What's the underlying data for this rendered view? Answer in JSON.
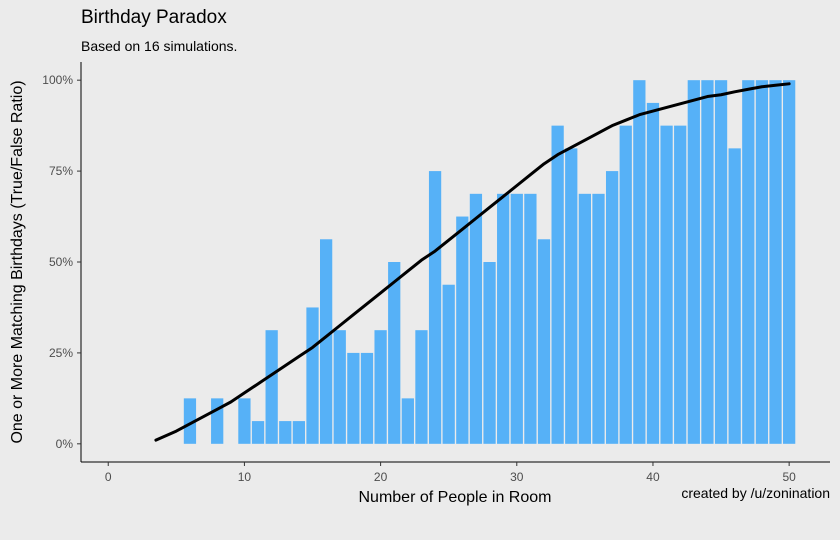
{
  "header": {
    "title": "Birthday Paradox",
    "subtitle": "Based on 16 simulations.",
    "caption": "created by /u/zonination"
  },
  "colors": {
    "background": "#ebebeb",
    "bar": "#56b1f7",
    "curve": "#000000",
    "axis": "#000000"
  },
  "chart_data": {
    "type": "bar",
    "xlabel": "Number of People in Room",
    "ylabel": "One or More Matching Birthdays (True/False Ratio)",
    "xlim": [
      -2,
      53
    ],
    "ylim": [
      -0.05,
      1.05
    ],
    "x_ticks": [
      0,
      10,
      20,
      30,
      40,
      50
    ],
    "y_ticks": [
      0,
      0.25,
      0.5,
      0.75,
      1.0
    ],
    "y_tick_labels": [
      "0%",
      "25%",
      "50%",
      "75%",
      "100%"
    ],
    "grid": false,
    "x": [
      2,
      3,
      4,
      5,
      6,
      7,
      8,
      9,
      10,
      11,
      12,
      13,
      14,
      15,
      16,
      17,
      18,
      19,
      20,
      21,
      22,
      23,
      24,
      25,
      26,
      27,
      28,
      29,
      30,
      31,
      32,
      33,
      34,
      35,
      36,
      37,
      38,
      39,
      40,
      41,
      42,
      43,
      44,
      45,
      46,
      47,
      48,
      49,
      50
    ],
    "values": [
      0,
      0,
      0,
      0,
      0.125,
      0,
      0.125,
      0,
      0.125,
      0.0625,
      0.3125,
      0.0625,
      0.0625,
      0.375,
      0.5625,
      0.3125,
      0.25,
      0.25,
      0.3125,
      0.5,
      0.125,
      0.3125,
      0.75,
      0.4375,
      0.625,
      0.6875,
      0.5,
      0.6875,
      0.6875,
      0.6875,
      0.5625,
      0.875,
      0.8125,
      0.6875,
      0.6875,
      0.75,
      0.875,
      1.0,
      0.9375,
      0.875,
      0.875,
      1.0,
      1.0,
      1.0,
      0.8125,
      1.0,
      1.0,
      1.0,
      1.0
    ],
    "series": [
      {
        "type": "line",
        "x": [
          3.5,
          5,
          6,
          7,
          8,
          9,
          10,
          11,
          12,
          13,
          14,
          15,
          16,
          17,
          18,
          19,
          20,
          21,
          22,
          23,
          24,
          25,
          26,
          27,
          28,
          29,
          30,
          31,
          32,
          33,
          34,
          35,
          36,
          37,
          38,
          39,
          40,
          41,
          42,
          43,
          44,
          45,
          46,
          47,
          48,
          49,
          50
        ],
        "values": [
          0.01,
          0.035,
          0.055,
          0.075,
          0.095,
          0.115,
          0.14,
          0.165,
          0.19,
          0.215,
          0.24,
          0.265,
          0.295,
          0.325,
          0.355,
          0.385,
          0.415,
          0.445,
          0.475,
          0.505,
          0.53,
          0.56,
          0.59,
          0.62,
          0.65,
          0.68,
          0.71,
          0.74,
          0.77,
          0.795,
          0.815,
          0.835,
          0.855,
          0.875,
          0.89,
          0.905,
          0.915,
          0.925,
          0.935,
          0.945,
          0.955,
          0.96,
          0.968,
          0.975,
          0.982,
          0.986,
          0.99
        ]
      }
    ]
  }
}
